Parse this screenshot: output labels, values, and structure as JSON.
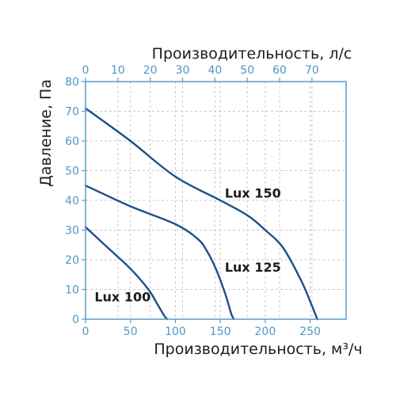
{
  "chart_data": {
    "type": "line",
    "x_label": "Производительность, м³/ч",
    "x2_label": "Производительность, л/с",
    "y_label": "Давление, Па",
    "x_ticks": [
      "0",
      "50",
      "100",
      "150",
      "200",
      "250"
    ],
    "x2_ticks": [
      "0",
      "10",
      "20",
      "30",
      "40",
      "50",
      "60",
      "70"
    ],
    "y_ticks": [
      "0",
      "10",
      "20",
      "30",
      "40",
      "50",
      "60",
      "70",
      "80"
    ],
    "xlim": [
      0,
      290
    ],
    "ylim": [
      0,
      80
    ],
    "grid": true,
    "series": [
      {
        "name": "Lux 150",
        "x": [
          0,
          50,
          100,
          150,
          180,
          200,
          220,
          240,
          250,
          258
        ],
        "y": [
          71,
          60,
          48,
          40,
          35,
          30,
          24,
          13,
          6,
          0
        ]
      },
      {
        "name": "Lux 125",
        "x": [
          0,
          50,
          100,
          125,
          135,
          145,
          155,
          162,
          165
        ],
        "y": [
          45,
          38,
          32,
          27,
          23,
          17,
          9,
          2,
          0
        ]
      },
      {
        "name": "Lux 100",
        "x": [
          0,
          25,
          50,
          70,
          80,
          88,
          91
        ],
        "y": [
          31,
          24,
          17,
          10,
          5,
          1,
          0
        ]
      }
    ]
  }
}
